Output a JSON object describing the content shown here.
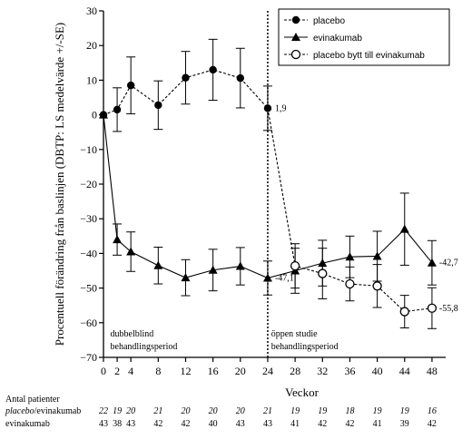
{
  "chart_data": {
    "type": "line",
    "ylabel": "Procentuell förändring från baslinjen (DBTP: LS medelvärde +/-SE)",
    "xlabel": "Veckor",
    "xlim": [
      0,
      50
    ],
    "ylim": [
      -70,
      30
    ],
    "xticks": [
      0,
      2,
      4,
      8,
      12,
      16,
      20,
      24,
      28,
      32,
      36,
      40,
      44,
      48
    ],
    "yticks": [
      30,
      20,
      10,
      0,
      -10,
      -20,
      -30,
      -40,
      -50,
      -60,
      -70
    ],
    "vline_at": 24,
    "legend_position": "top-right",
    "series": [
      {
        "name": "placebo",
        "marker": "filled-circle",
        "line_style": "dashed",
        "x": [
          0,
          2,
          4,
          8,
          12,
          16,
          20,
          24
        ],
        "y": [
          0,
          1.5,
          8.5,
          2.8,
          10.7,
          13,
          10.6,
          1.9
        ],
        "err": [
          0,
          6.3,
          8.2,
          7,
          7.6,
          8.8,
          8.6,
          6.4
        ]
      },
      {
        "name": "evinakumab",
        "marker": "filled-triangle",
        "line_style": "solid",
        "x": [
          0,
          2,
          4,
          8,
          12,
          16,
          20,
          24,
          28,
          32,
          36,
          40,
          44,
          48
        ],
        "y": [
          0,
          -36,
          -39.5,
          -43.5,
          -47,
          -44.8,
          -43.7,
          -47.1,
          -45,
          -42.8,
          -41,
          -40.8,
          -33,
          -42.7
        ],
        "err": [
          0,
          4.5,
          5.7,
          5.3,
          5.2,
          6,
          5.4,
          4.9,
          6.5,
          6.6,
          6,
          7.2,
          10.4,
          6.4
        ]
      },
      {
        "name": "placebo bytt till evinakumab",
        "marker": "open-circle",
        "line_style": "dashed",
        "x": [
          24,
          28,
          32,
          36,
          40,
          44,
          48
        ],
        "y": [
          1.9,
          -43.6,
          -45.8,
          -48.8,
          -49.4,
          -56.8,
          -55.8
        ],
        "err": [
          0,
          6.4,
          7.3,
          4.9,
          6.2,
          4.7,
          5.9
        ]
      }
    ],
    "point_labels": [
      {
        "text": "1,9",
        "x": 24,
        "y": 1.9
      },
      {
        "text": "-47,1",
        "x": 24,
        "y": -47.1
      },
      {
        "text": "-42,7",
        "x": 48,
        "y": -42.7
      },
      {
        "text": "-55,8",
        "x": 48,
        "y": -55.8
      }
    ],
    "period_labels": [
      {
        "lines": [
          "dubbelblind",
          "behandlingsperiod"
        ],
        "x": 1
      },
      {
        "lines": [
          "öppen studie",
          "behandlingsperiod"
        ],
        "x": 24.5
      }
    ],
    "patient_table": {
      "title": "Antal patienter",
      "row1_label_italic": "placebo",
      "row1_label_rest": "/evinakumab",
      "row2_label": "evinakumab",
      "weeks": [
        0,
        2,
        4,
        8,
        12,
        16,
        20,
        24,
        28,
        32,
        36,
        40,
        44,
        48
      ],
      "row1": [
        "22",
        "19",
        "20",
        "21",
        "20",
        "20",
        "20",
        "21",
        "19",
        "19",
        "18",
        "19",
        "19",
        "16"
      ],
      "row2": [
        "43",
        "38",
        "43",
        "42",
        "42",
        "40",
        "43",
        "43",
        "41",
        "42",
        "42",
        "41",
        "39",
        "42"
      ],
      "row1_italic_prefix": {
        "0": "19"
      }
    }
  }
}
